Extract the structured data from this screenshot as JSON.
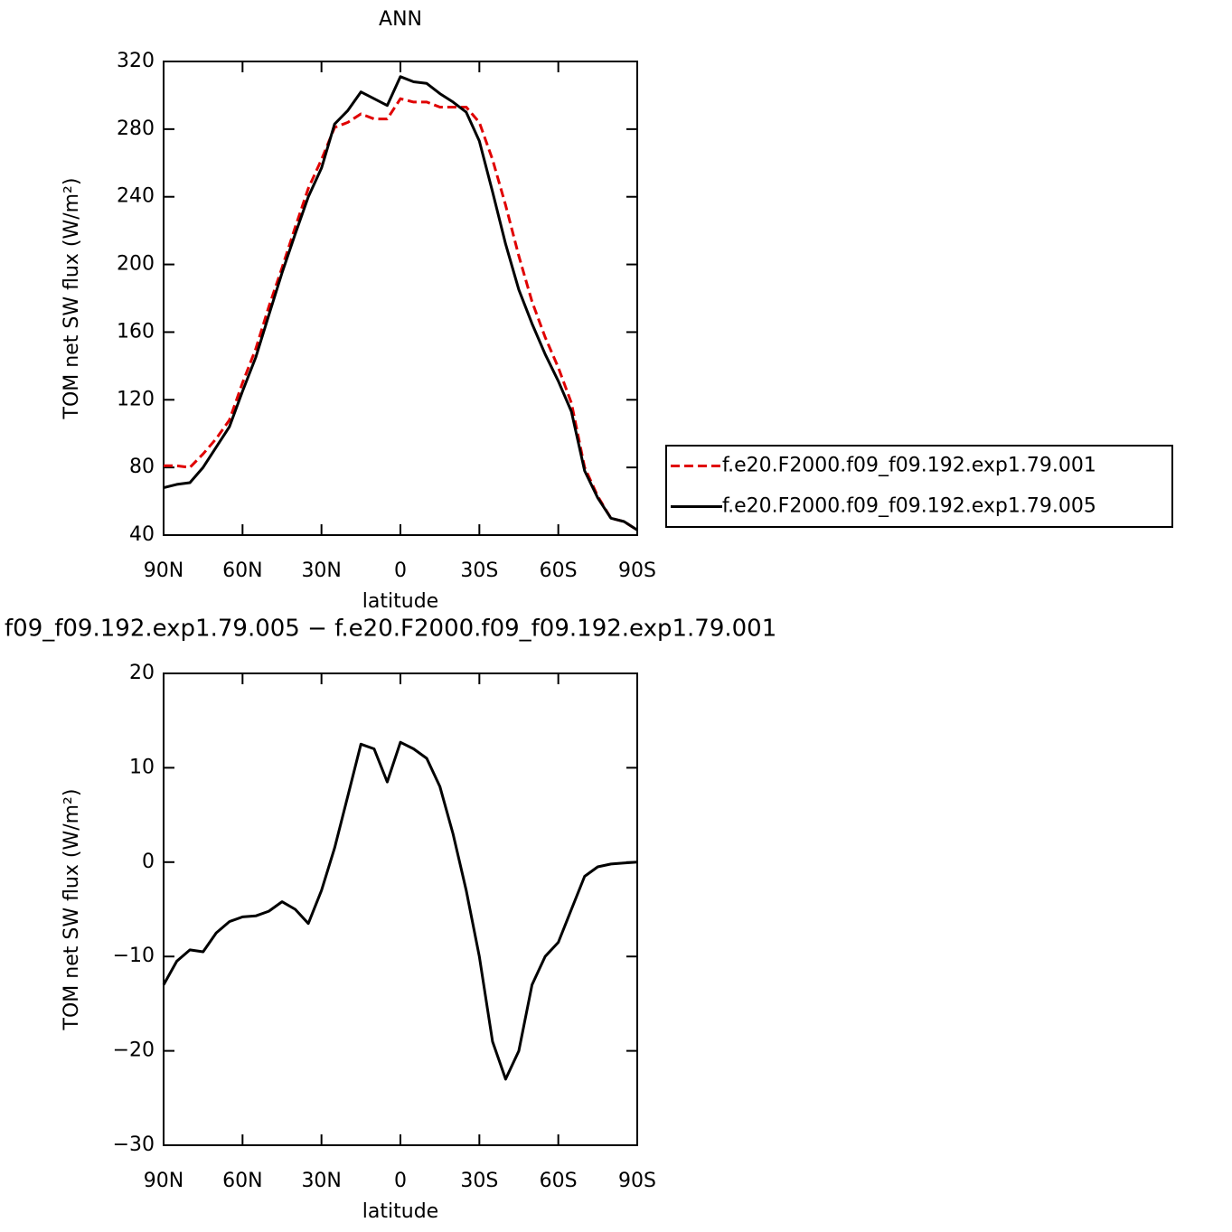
{
  "chart_data": [
    {
      "type": "line",
      "title": "ANN",
      "xlabel": "latitude",
      "ylabel": "TOM net SW flux (W/m²)",
      "x": [
        90,
        85,
        80,
        75,
        70,
        65,
        60,
        55,
        50,
        45,
        40,
        35,
        30,
        25,
        20,
        15,
        10,
        5,
        0,
        -5,
        -10,
        -15,
        -20,
        -25,
        -30,
        -35,
        -40,
        -45,
        -50,
        -55,
        -60,
        -65,
        -70,
        -75,
        -80,
        -85,
        -90
      ],
      "xlim": [
        90,
        -90
      ],
      "xticks": [
        {
          "value": 90,
          "label": "90N"
        },
        {
          "value": 60,
          "label": "60N"
        },
        {
          "value": 30,
          "label": "30N"
        },
        0,
        {
          "value": -30,
          "label": "30S"
        },
        {
          "value": -60,
          "label": "60S"
        },
        {
          "value": -90,
          "label": "90S"
        }
      ],
      "ylim": [
        40,
        320
      ],
      "yticks": [
        40,
        80,
        120,
        160,
        200,
        240,
        280,
        320
      ],
      "legend": "right",
      "series": [
        {
          "name": "f.e20.F2000.f09_f09.192.exp1.79.001",
          "color": "#e00000",
          "dashed": true,
          "values": [
            81,
            81,
            80,
            88,
            97,
            108,
            130,
            150,
            175,
            198,
            222,
            245,
            262,
            281,
            284,
            289,
            286,
            286,
            298,
            296,
            296,
            293,
            293,
            293,
            284,
            262,
            235,
            205,
            178,
            157,
            139,
            118,
            80,
            63,
            50,
            48,
            43
          ]
        },
        {
          "name": "f.e20.F2000.f09_f09.192.exp1.79.005",
          "color": "#000000",
          "dashed": false,
          "values": [
            68,
            70,
            71,
            80,
            92,
            104,
            125,
            145,
            170,
            195,
            218,
            240,
            257,
            283,
            291,
            302,
            298,
            294,
            311,
            308,
            307,
            301,
            296,
            290,
            273,
            243,
            212,
            185,
            165,
            147,
            131,
            113,
            78,
            62,
            50,
            48,
            43
          ]
        }
      ]
    },
    {
      "type": "line",
      "title": "f09_f09.192.exp1.79.005 − f.e20.F2000.f09_f09.192.exp1.79.001",
      "xlabel": "latitude",
      "ylabel": "TOM net SW flux (W/m²)",
      "x": [
        90,
        85,
        80,
        75,
        70,
        65,
        60,
        55,
        50,
        45,
        40,
        35,
        30,
        25,
        20,
        15,
        10,
        5,
        0,
        -5,
        -10,
        -15,
        -20,
        -25,
        -30,
        -35,
        -40,
        -45,
        -50,
        -55,
        -60,
        -65,
        -70,
        -75,
        -80,
        -85,
        -90
      ],
      "xlim": [
        90,
        -90
      ],
      "xticks": [
        {
          "value": 90,
          "label": "90N"
        },
        {
          "value": 60,
          "label": "60N"
        },
        {
          "value": 30,
          "label": "30N"
        },
        0,
        {
          "value": -30,
          "label": "30S"
        },
        {
          "value": -60,
          "label": "60S"
        },
        {
          "value": -90,
          "label": "90S"
        }
      ],
      "ylim": [
        -30,
        20
      ],
      "yticks": [
        {
          "value": -30,
          "label": "−30"
        },
        {
          "value": -20,
          "label": "−20"
        },
        {
          "value": -10,
          "label": "−10"
        },
        0,
        10,
        20
      ],
      "series": [
        {
          "color": "#000000",
          "dashed": false,
          "values": [
            -13,
            -10.5,
            -9.3,
            -9.5,
            -7.5,
            -6.3,
            -5.8,
            -5.7,
            -5.2,
            -4.2,
            -5,
            -6.5,
            -3,
            1.5,
            7,
            12.5,
            12,
            8.5,
            12.7,
            12,
            11,
            8,
            3,
            -3,
            -10,
            -19,
            -23,
            -20,
            -13,
            -10,
            -8.5,
            -5,
            -1.5,
            -0.5,
            -0.2,
            -0.1,
            0
          ]
        }
      ]
    }
  ]
}
